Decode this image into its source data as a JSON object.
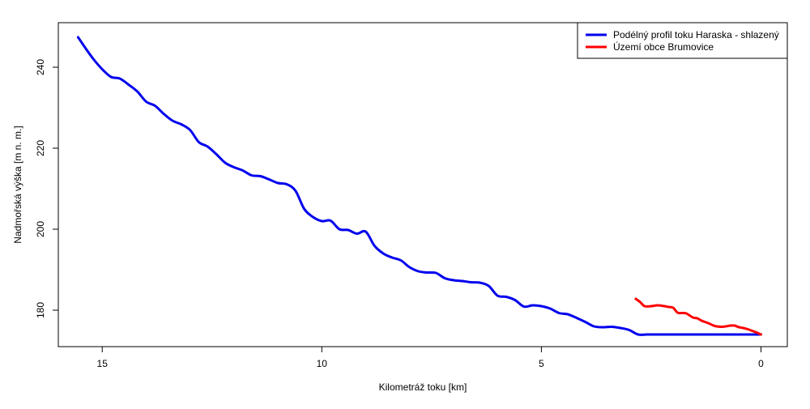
{
  "chart_data": {
    "type": "line",
    "title": "",
    "xlabel": "Kilometráž toku [km]",
    "ylabel": "Nadmořská výška [m n. m.]",
    "xlim": [
      16.0,
      -0.6
    ],
    "ylim": [
      171,
      251
    ],
    "x_reversed": true,
    "x_ticks": [
      15,
      10,
      5,
      0
    ],
    "y_ticks": [
      180,
      200,
      220,
      240
    ],
    "grid": false,
    "legend_position": "top-right",
    "series": [
      {
        "name": "Podélný profil toku Haraska - shlazený",
        "color": "#0000ee",
        "x": [
          15.55,
          15.4,
          15.2,
          15.0,
          14.8,
          14.6,
          14.4,
          14.2,
          14.0,
          13.8,
          13.6,
          13.4,
          13.2,
          13.0,
          12.8,
          12.6,
          12.4,
          12.2,
          12.0,
          11.8,
          11.6,
          11.4,
          11.2,
          11.0,
          10.8,
          10.6,
          10.4,
          10.2,
          10.0,
          9.8,
          9.6,
          9.4,
          9.2,
          9.0,
          8.8,
          8.6,
          8.4,
          8.2,
          8.0,
          7.8,
          7.6,
          7.4,
          7.2,
          7.0,
          6.8,
          6.6,
          6.4,
          6.2,
          6.0,
          5.8,
          5.6,
          5.4,
          5.2,
          5.0,
          4.8,
          4.6,
          4.4,
          4.2,
          4.0,
          3.8,
          3.6,
          3.4,
          3.2,
          3.0,
          2.8,
          2.6,
          2.4,
          2.2,
          2.0,
          1.8,
          1.6,
          1.4,
          1.2,
          1.0,
          0.8,
          0.6,
          0.4,
          0.2,
          0.0
        ],
        "y": [
          247.4,
          245.0,
          242.0,
          239.5,
          237.6,
          237.2,
          235.7,
          234.0,
          231.5,
          230.5,
          228.5,
          226.8,
          225.9,
          224.5,
          221.5,
          220.4,
          218.5,
          216.4,
          215.3,
          214.5,
          213.3,
          213.1,
          212.3,
          211.4,
          211.1,
          209.5,
          205.0,
          203.0,
          202.0,
          202.1,
          200.0,
          199.8,
          198.9,
          199.4,
          195.9,
          194.0,
          193.0,
          192.3,
          190.6,
          189.6,
          189.3,
          189.2,
          187.9,
          187.4,
          187.2,
          186.9,
          186.8,
          186.0,
          183.6,
          183.3,
          182.5,
          180.9,
          181.2,
          181.0,
          180.4,
          179.3,
          179.0,
          178.1,
          177.1,
          176.0,
          175.8,
          175.9,
          175.6,
          175.1,
          174.0,
          174.0,
          174.0,
          174.0,
          174.0,
          174.0,
          174.0,
          174.0,
          174.0,
          174.0,
          174.0,
          174.0,
          174.0,
          174.0,
          174.0
        ]
      },
      {
        "name": "Území obce Brumovice",
        "color": "#ff0000",
        "x": [
          2.85,
          2.75,
          2.65,
          2.5,
          2.35,
          2.2,
          2.1,
          2.0,
          1.9,
          1.8,
          1.7,
          1.55,
          1.45,
          1.35,
          1.2,
          1.05,
          0.9,
          0.8,
          0.7,
          0.6,
          0.5,
          0.4,
          0.3,
          0.2,
          0.1,
          0.0
        ],
        "y": [
          182.8,
          182.0,
          181.0,
          181.0,
          181.2,
          181.0,
          180.8,
          180.6,
          179.4,
          179.3,
          179.2,
          178.2,
          178.0,
          177.4,
          176.8,
          176.1,
          175.9,
          176.0,
          176.2,
          176.2,
          175.8,
          175.6,
          175.3,
          174.9,
          174.5,
          174.0
        ]
      }
    ]
  }
}
